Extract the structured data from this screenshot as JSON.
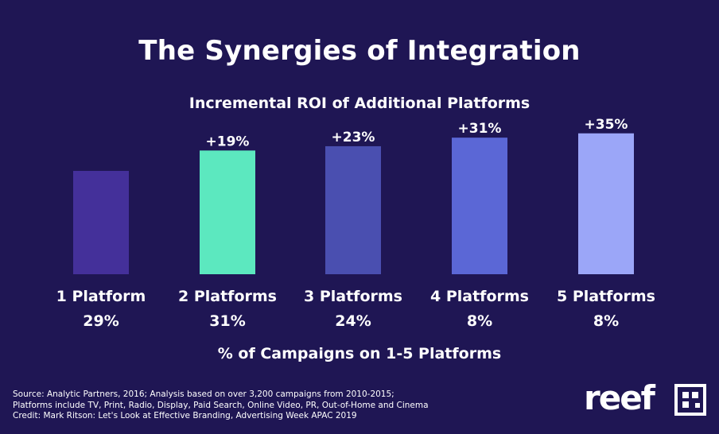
{
  "chart_data": {
    "type": "bar",
    "title": "The Synergies of Integration",
    "subtitle": "Incremental ROI of Additional Platforms",
    "xlabel": "% of Campaigns on 1-5 Platforms",
    "categories": [
      "1 Platform",
      "2 Platforms",
      "3 Platforms",
      "4 Platforms",
      "5 Platforms"
    ],
    "values": [
      0,
      19,
      23,
      31,
      35
    ],
    "bar_labels": [
      "",
      "+19%",
      "+23%",
      "+31%",
      "+35%"
    ],
    "campaign_shares": [
      "29%",
      "31%",
      "24%",
      "8%",
      "8%"
    ],
    "bar_colors": [
      "#44309a",
      "#5ce8bf",
      "#4a4fb0",
      "#5b67d6",
      "#9ba6f8"
    ],
    "grid": false,
    "legend": "none"
  },
  "source": {
    "lines": [
      "Source: Analytic Partners, 2016; Analysis based on over 3,200 campaigns from 2010-2015;",
      "Platforms include TV, Print, Radio, Display, Paid Search, Online Video, PR, Out-of-Home and Cinema",
      "Credit: Mark Ritson: Let's Look at Effective Branding, Advertising Week APAC 2019"
    ]
  },
  "logo": {
    "text": "reef"
  },
  "colors": {
    "background": "#1f1654",
    "text": "#ffffff"
  }
}
